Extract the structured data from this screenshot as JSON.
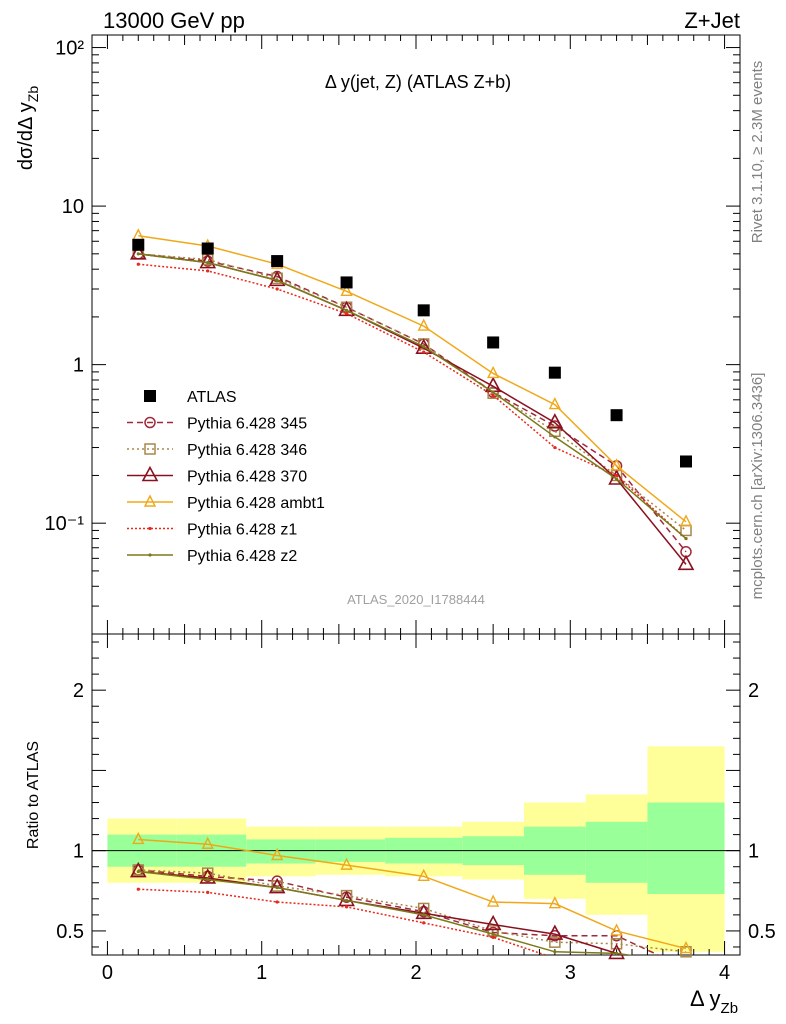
{
  "header": {
    "left": "13000 GeV pp",
    "right": "Z+Jet"
  },
  "side_text": {
    "rivet": "Rivet 3.1.10, ≥ 2.3M events",
    "url": "mcplots.cern.ch [arXiv:1306.3436]"
  },
  "colors": {
    "ATLAS": "#000000",
    "p345": "#a0283c",
    "p346": "#a8864a",
    "p370": "#8a1020",
    "ambt1": "#f0a81a",
    "z1": "#e8281c",
    "z2": "#7a7a1a",
    "band_outer": "#ffff99",
    "band_inner": "#99ff99"
  },
  "chart_data": [
    {
      "type": "line",
      "title": "Δ y(jet, Z) (ATLAS Z+b)",
      "ylabel_main": "dσ/dΔ y",
      "ylabel_sub": "Zb",
      "watermark": "ATLAS_2020_I1788444",
      "yscale": "log",
      "ylim": [
        0.02,
        120
      ],
      "xlim": [
        -0.1,
        4.1
      ],
      "x_ticks": [
        0,
        1,
        2,
        3,
        4
      ],
      "y_tick_labels": {
        "0.1": "10⁻¹",
        "1": "1",
        "10": "10",
        "100": "10²"
      },
      "legend_position": "lower-left",
      "x": [
        0.2,
        0.65,
        1.1,
        1.55,
        2.05,
        2.5,
        2.9,
        3.3,
        3.75
      ],
      "bin_edges": [
        0,
        0.45,
        0.9,
        1.35,
        1.8,
        2.3,
        2.7,
        3.1,
        3.5,
        4.0
      ],
      "series": [
        {
          "name": "ATLAS",
          "key": "ATLAS",
          "style": "square",
          "values": [
            5.7,
            5.4,
            4.5,
            3.3,
            2.2,
            1.38,
            0.89,
            0.48,
            0.245
          ]
        },
        {
          "name": "Pythia 6.428 345",
          "key": "p345",
          "style": "circle",
          "dash": "6,4",
          "values": [
            5.0,
            4.5,
            3.6,
            2.3,
            1.35,
            0.67,
            0.41,
            0.23,
            0.066
          ]
        },
        {
          "name": "Pythia 6.428 346",
          "key": "p346",
          "style": "square-open",
          "dash": "2,3",
          "values": [
            5.0,
            4.6,
            3.5,
            2.3,
            1.35,
            0.66,
            0.38,
            0.2,
            0.09
          ]
        },
        {
          "name": "Pythia 6.428 370",
          "key": "p370",
          "style": "triangle",
          "dash": "",
          "values": [
            5.0,
            4.4,
            3.4,
            2.2,
            1.27,
            0.73,
            0.43,
            0.19,
            0.055
          ]
        },
        {
          "name": "Pythia 6.428 ambt1",
          "key": "ambt1",
          "style": "triangle-small",
          "dash": "",
          "values": [
            6.5,
            5.6,
            4.3,
            2.9,
            1.75,
            0.88,
            0.56,
            0.23,
            0.102
          ]
        },
        {
          "name": "Pythia 6.428 z1",
          "key": "z1",
          "style": "dot",
          "dash": "2,2",
          "values": [
            4.3,
            3.9,
            3.0,
            2.1,
            1.2,
            0.64,
            0.3,
            0.2,
            0.08
          ]
        },
        {
          "name": "Pythia 6.428 z2",
          "key": "z2",
          "style": "dot",
          "dash": "",
          "values": [
            5.0,
            4.4,
            3.4,
            2.2,
            1.3,
            0.67,
            0.35,
            0.19,
            0.08
          ]
        }
      ]
    },
    {
      "type": "line",
      "ylabel": "Ratio to ATLAS",
      "xlabel_main": "Δ y",
      "xlabel_sub": "Zb",
      "ylim": [
        0.35,
        2.35
      ],
      "y_ticks": [
        0.5,
        1,
        2
      ],
      "x": [
        0.2,
        0.65,
        1.1,
        1.55,
        2.05,
        2.5,
        2.9,
        3.3,
        3.75
      ],
      "bands": {
        "outer_low": [
          0.8,
          0.8,
          0.84,
          0.85,
          0.84,
          0.82,
          0.7,
          0.6,
          0.37
        ],
        "outer_high": [
          1.2,
          1.2,
          1.15,
          1.15,
          1.15,
          1.18,
          1.3,
          1.35,
          1.65
        ],
        "inner_low": [
          0.9,
          0.9,
          0.92,
          0.93,
          0.92,
          0.91,
          0.85,
          0.8,
          0.73
        ],
        "inner_high": [
          1.1,
          1.1,
          1.07,
          1.07,
          1.08,
          1.09,
          1.15,
          1.18,
          1.3
        ]
      },
      "series": [
        {
          "name": "Pythia 6.428 345",
          "key": "p345",
          "style": "circle",
          "dash": "6,4",
          "values": [
            0.88,
            0.84,
            0.81,
            0.71,
            0.62,
            0.49,
            0.47,
            0.47,
            0.27
          ]
        },
        {
          "name": "Pythia 6.428 346",
          "key": "p346",
          "style": "square-open",
          "dash": "2,3",
          "values": [
            0.88,
            0.86,
            0.78,
            0.72,
            0.64,
            0.5,
            0.43,
            0.42,
            0.37
          ]
        },
        {
          "name": "Pythia 6.428 370",
          "key": "p370",
          "style": "triangle",
          "dash": "",
          "values": [
            0.87,
            0.83,
            0.77,
            0.69,
            0.61,
            0.54,
            0.48,
            0.36,
            0.22
          ]
        },
        {
          "name": "Pythia 6.428 ambt1",
          "key": "ambt1",
          "style": "triangle-small",
          "dash": "",
          "values": [
            1.07,
            1.04,
            0.97,
            0.91,
            0.84,
            0.68,
            0.67,
            0.5,
            0.39
          ]
        },
        {
          "name": "Pythia 6.428 z1",
          "key": "z1",
          "style": "dot",
          "dash": "2,2",
          "values": [
            0.76,
            0.74,
            0.68,
            0.65,
            0.55,
            0.46,
            0.33,
            0.33,
            0.3
          ]
        },
        {
          "name": "Pythia 6.428 z2",
          "key": "z2",
          "style": "dot",
          "dash": "",
          "values": [
            0.87,
            0.82,
            0.77,
            0.69,
            0.6,
            0.48,
            0.37,
            0.36,
            0.3
          ]
        }
      ]
    }
  ]
}
